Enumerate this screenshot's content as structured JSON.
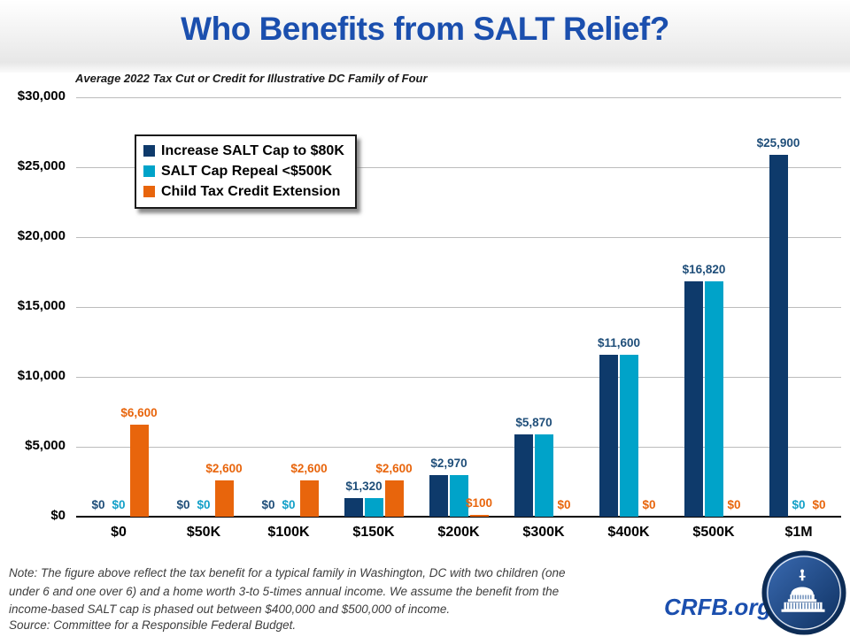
{
  "chart_data": {
    "type": "bar",
    "title": "Who Benefits from SALT Relief?",
    "subtitle": "Average 2022 Tax Cut or Credit for Illustrative DC Family of Four",
    "categories": [
      "$0",
      "$50K",
      "$100K",
      "$150K",
      "$200K",
      "$300K",
      "$400K",
      "$500K",
      "$1M"
    ],
    "xlabel": "",
    "ylabel": "",
    "ylim": [
      0,
      30000
    ],
    "ytick_step": 5000,
    "yticks": [
      "$0",
      "$5,000",
      "$10,000",
      "$15,000",
      "$20,000",
      "$25,000",
      "$30,000"
    ],
    "grid": true,
    "legend_position": "top-left",
    "series": [
      {
        "name": "Increase SALT Cap to $80K",
        "color": "#0e3a6b",
        "label_color": "#1f4e79",
        "values": [
          0,
          0,
          0,
          1320,
          2970,
          5870,
          11600,
          16820,
          25900
        ],
        "labels": [
          "$0",
          "$0",
          "$0",
          "$1,320",
          "$2,970",
          "$5,870",
          "$11,600",
          "$16,820",
          "$25,900"
        ]
      },
      {
        "name": "SALT Cap Repeal <$500K",
        "color": "#00a3c9",
        "label_color": "#13a0c8",
        "values": [
          0,
          0,
          0,
          1320,
          2970,
          5870,
          11600,
          16820,
          0
        ],
        "labels": [
          "$0",
          "$0",
          "$0",
          null,
          null,
          null,
          null,
          null,
          "$0"
        ]
      },
      {
        "name": "Child Tax Credit Extension",
        "color": "#e8650c",
        "label_color": "#e8650c",
        "values": [
          6600,
          2600,
          2600,
          2600,
          100,
          0,
          0,
          0,
          0
        ],
        "labels": [
          "$6,600",
          "$2,600",
          "$2,600",
          "$2,600",
          "$100",
          "$0",
          "$0",
          "$0",
          "$0"
        ]
      }
    ]
  },
  "footer": {
    "note_lines": [
      "Note: The figure above reflect the tax benefit for a typical family in Washington,  DC with two children (one",
      "under 6 and one over 6) and a home worth 3-to 5-times annual income. We assume the benefit from the",
      "income-based SALT cap is phased out between $400,000 and $500,000 of income."
    ],
    "source": "Source: Committee for a Responsible Federal Budget.",
    "logo_text": "CRFB.org"
  },
  "colors": {
    "title_blue": "#1b4fae",
    "axis_black": "#000000",
    "gridline_gray": "#bcbcbc"
  }
}
